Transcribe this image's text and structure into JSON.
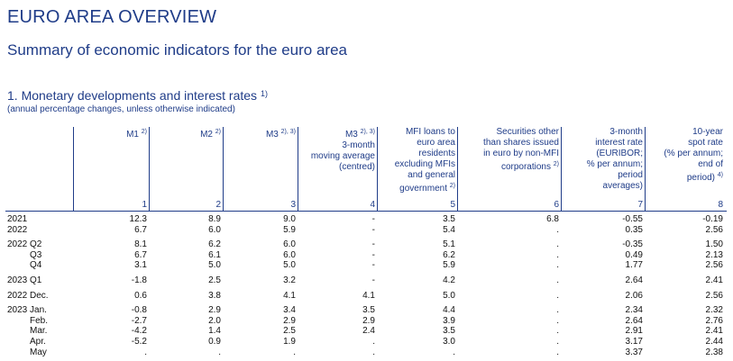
{
  "header": {
    "title": "EURO AREA OVERVIEW",
    "subtitle": "Summary of economic indicators for the euro area"
  },
  "section": {
    "title": {
      "text": "1. Monetary developments and interest rates",
      "note": "1)"
    },
    "note": "(annual percentage changes, unless otherwise indicated)"
  },
  "table": {
    "columns": [
      {
        "lines": [
          {
            "text": "M1",
            "note": "2)"
          }
        ],
        "number": 1
      },
      {
        "lines": [
          {
            "text": "M2",
            "note": "2)"
          }
        ],
        "number": 2
      },
      {
        "lines": [
          {
            "text": "M3",
            "note": "2), 3)"
          }
        ],
        "number": 3
      },
      {
        "lines": [
          {
            "text": "M3",
            "note": "2), 3)"
          },
          "3-month",
          "moving average",
          "(centred)"
        ],
        "number": 4
      },
      {
        "lines": [
          "MFI loans to",
          "euro area",
          "residents",
          "excluding MFIs",
          "and general",
          {
            "text": "government",
            "note": "2)"
          }
        ],
        "number": 5
      },
      {
        "lines": [
          "Securities other",
          "than shares issued",
          "in euro by non-MFI",
          {
            "text": "corporations",
            "note": "2)"
          }
        ],
        "number": 6
      },
      {
        "lines": [
          "3-month",
          "interest rate",
          "(EURIBOR;",
          "% per annum;",
          "period",
          "averages)"
        ],
        "number": 7
      },
      {
        "lines": [
          "10-year",
          "spot rate",
          "(% per annum;",
          "end of",
          {
            "text": "period)",
            "note": "4)"
          }
        ],
        "number": 8
      }
    ],
    "row_groups": [
      [
        {
          "label": "2021",
          "values": [
            "12.3",
            "8.9",
            "9.0",
            "-",
            "3.5",
            "6.8",
            "-0.55",
            "-0.19"
          ]
        },
        {
          "label": "2022",
          "values": [
            "6.7",
            "6.0",
            "5.9",
            "-",
            "5.4",
            ".",
            "0.35",
            "2.56"
          ]
        }
      ],
      [
        {
          "label": "2022 Q2",
          "values": [
            "8.1",
            "6.2",
            "6.0",
            "-",
            "5.1",
            ".",
            "-0.35",
            "1.50"
          ]
        },
        {
          "label": "Q3",
          "values": [
            "6.7",
            "6.1",
            "6.0",
            "-",
            "6.2",
            ".",
            "0.49",
            "2.13"
          ]
        },
        {
          "label": "Q4",
          "values": [
            "3.1",
            "5.0",
            "5.0",
            "-",
            "5.9",
            ".",
            "1.77",
            "2.56"
          ]
        }
      ],
      [
        {
          "label": "2023 Q1",
          "values": [
            "-1.8",
            "2.5",
            "3.2",
            "-",
            "4.2",
            ".",
            "2.64",
            "2.41"
          ]
        }
      ],
      [
        {
          "label": "2022 Dec.",
          "values": [
            "0.6",
            "3.8",
            "4.1",
            "4.1",
            "5.0",
            ".",
            "2.06",
            "2.56"
          ]
        }
      ],
      [
        {
          "label": "2023 Jan.",
          "values": [
            "-0.8",
            "2.9",
            "3.4",
            "3.5",
            "4.4",
            ".",
            "2.34",
            "2.32"
          ]
        },
        {
          "label": "Feb.",
          "values": [
            "-2.7",
            "2.0",
            "2.9",
            "2.9",
            "3.9",
            ".",
            "2.64",
            "2.76"
          ]
        },
        {
          "label": "Mar.",
          "values": [
            "-4.2",
            "1.4",
            "2.5",
            "2.4",
            "3.5",
            ".",
            "2.91",
            "2.41"
          ]
        },
        {
          "label": "Apr.",
          "values": [
            "-5.2",
            "0.9",
            "1.9",
            ".",
            "3.0",
            ".",
            "3.17",
            "2.44"
          ]
        },
        {
          "label": "May",
          "values": [
            ".",
            ".",
            ".",
            ".",
            ".",
            ".",
            "3.37",
            "2.38"
          ]
        }
      ]
    ]
  }
}
